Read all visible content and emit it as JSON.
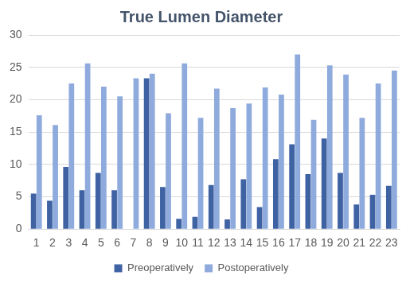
{
  "chart_data": {
    "type": "bar",
    "title": "True Lumen Diameter",
    "categories": [
      "1",
      "2",
      "3",
      "4",
      "5",
      "6",
      "7",
      "8",
      "9",
      "10",
      "11",
      "12",
      "13",
      "14",
      "15",
      "16",
      "17",
      "18",
      "19",
      "20",
      "21",
      "22",
      "23"
    ],
    "series": [
      {
        "name": "Preoperatively",
        "color": "#3f62a3",
        "values": [
          5.5,
          4.4,
          9.6,
          6.0,
          8.7,
          6.0,
          null,
          23.3,
          6.5,
          1.6,
          1.9,
          6.8,
          1.5,
          7.7,
          3.4,
          10.8,
          13.1,
          8.5,
          14.0,
          8.7,
          3.8,
          5.3,
          6.7
        ]
      },
      {
        "name": "Postoperatively",
        "color": "#8faadc",
        "values": [
          17.6,
          16.1,
          22.5,
          25.6,
          22.0,
          20.5,
          23.3,
          24.0,
          17.9,
          25.6,
          17.2,
          21.7,
          18.7,
          19.4,
          21.9,
          20.8,
          27.0,
          16.9,
          25.3,
          23.9,
          17.2,
          22.5,
          24.5
        ]
      }
    ],
    "ylim": [
      0,
      30
    ],
    "yticks": [
      0,
      5,
      10,
      15,
      20,
      25,
      30
    ],
    "grid": true,
    "legend": "bottom"
  }
}
